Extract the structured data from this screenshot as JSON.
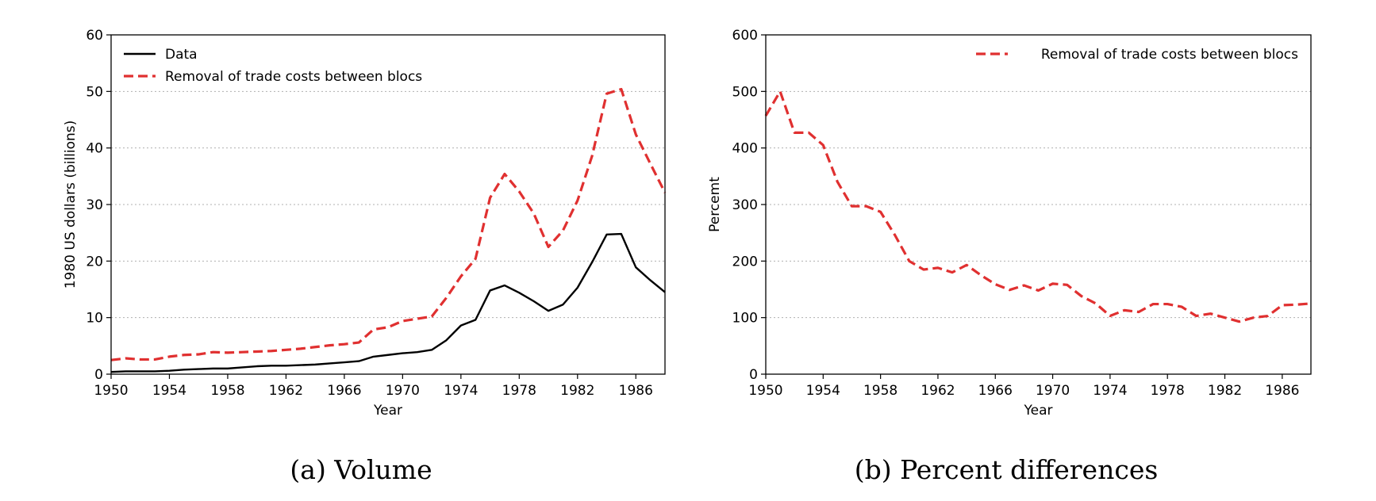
{
  "chart_data": [
    {
      "type": "line",
      "caption": "(a) Volume",
      "xlabel": "Year",
      "ylabel": "1980 US dollars (billions)",
      "xlim": [
        1950,
        1988
      ],
      "ylim": [
        0,
        60
      ],
      "xticks": [
        1950,
        1954,
        1958,
        1962,
        1966,
        1970,
        1974,
        1978,
        1982,
        1986
      ],
      "yticks": [
        0,
        10,
        20,
        30,
        40,
        50,
        60
      ],
      "grid": "y dotted",
      "legend_position": "upper-left",
      "x": [
        1950,
        1951,
        1952,
        1953,
        1954,
        1955,
        1956,
        1957,
        1958,
        1959,
        1960,
        1961,
        1962,
        1963,
        1964,
        1965,
        1966,
        1967,
        1968,
        1969,
        1970,
        1971,
        1972,
        1973,
        1974,
        1975,
        1976,
        1977,
        1978,
        1979,
        1980,
        1981,
        1982,
        1983,
        1984,
        1985,
        1986,
        1987,
        1988
      ],
      "series": [
        {
          "name": "Data",
          "color": "#000000",
          "dash": "solid",
          "values": [
            0.4,
            0.5,
            0.5,
            0.5,
            0.6,
            0.8,
            0.9,
            1.0,
            1.0,
            1.2,
            1.4,
            1.5,
            1.5,
            1.6,
            1.7,
            1.9,
            2.1,
            2.3,
            3.1,
            3.4,
            3.7,
            3.9,
            4.3,
            6.0,
            8.6,
            9.6,
            14.8,
            15.7,
            14.4,
            12.9,
            11.2,
            12.3,
            15.3,
            19.8,
            24.7,
            24.8,
            18.9,
            16.6,
            14.5
          ]
        },
        {
          "name": "Removal of trade costs between blocs",
          "color": "#e03030",
          "dash": "dashed",
          "values": [
            2.5,
            2.8,
            2.6,
            2.6,
            3.1,
            3.4,
            3.5,
            3.9,
            3.8,
            3.9,
            4.0,
            4.1,
            4.3,
            4.5,
            4.8,
            5.1,
            5.3,
            5.6,
            7.9,
            8.3,
            9.4,
            9.8,
            10.2,
            13.5,
            17.3,
            20.4,
            31.2,
            35.4,
            32.3,
            28.4,
            22.5,
            25.4,
            30.7,
            38.6,
            49.6,
            50.4,
            42.4,
            37.2,
            32.1
          ]
        }
      ]
    },
    {
      "type": "line",
      "caption": "(b) Percent differences",
      "xlabel": "Year",
      "ylabel": "Percemt",
      "xlim": [
        1950,
        1988
      ],
      "ylim": [
        0,
        600
      ],
      "xticks": [
        1950,
        1954,
        1958,
        1962,
        1966,
        1970,
        1974,
        1978,
        1982,
        1986
      ],
      "yticks": [
        0,
        100,
        200,
        300,
        400,
        500,
        600
      ],
      "grid": "y dotted",
      "legend_position": "upper-right",
      "x": [
        1950,
        1951,
        1952,
        1953,
        1954,
        1955,
        1956,
        1957,
        1958,
        1959,
        1960,
        1961,
        1962,
        1963,
        1964,
        1965,
        1966,
        1967,
        1968,
        1969,
        1970,
        1971,
        1972,
        1973,
        1974,
        1975,
        1976,
        1977,
        1978,
        1979,
        1980,
        1981,
        1982,
        1983,
        1984,
        1985,
        1986,
        1987,
        1988
      ],
      "series": [
        {
          "name": "Removal of trade costs between blocs",
          "color": "#e03030",
          "dash": "dashed",
          "values": [
            457,
            500,
            427,
            427,
            405,
            340,
            297,
            297,
            287,
            246,
            200,
            185,
            188,
            180,
            193,
            175,
            159,
            149,
            157,
            148,
            160,
            158,
            138,
            125,
            103,
            113,
            110,
            124,
            124,
            119,
            103,
            107,
            100,
            93,
            100,
            103,
            122,
            123,
            125
          ]
        }
      ]
    }
  ]
}
